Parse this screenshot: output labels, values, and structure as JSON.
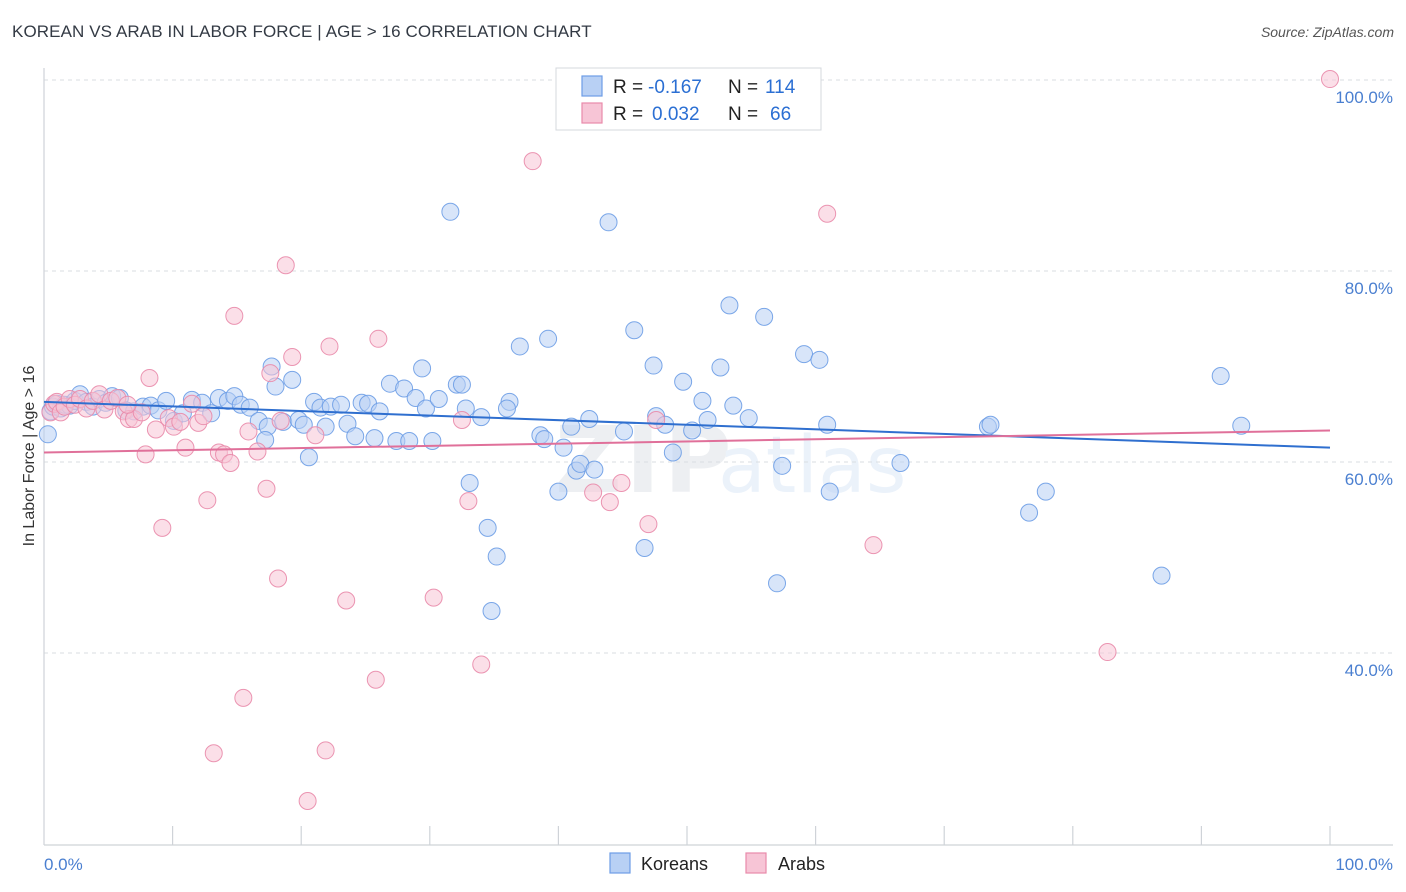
{
  "header": {
    "title": "KOREAN VS ARAB IN LABOR FORCE | AGE > 16 CORRELATION CHART",
    "source": "Source: ZipAtlas.com"
  },
  "chart_data": {
    "type": "scatter",
    "title": "KOREAN VS ARAB IN LABOR FORCE | AGE > 16 CORRELATION CHART",
    "ylabel": "In Labor Force | Age > 16",
    "xlabel": "",
    "xlim": [
      0,
      100
    ],
    "ylim": [
      20,
      104
    ],
    "x_tick_labels": {
      "left": "0.0%",
      "right": "100.0%"
    },
    "y_ticks": [
      {
        "value": 100,
        "label": "100.0%"
      },
      {
        "value": 80,
        "label": "80.0%"
      },
      {
        "value": 60,
        "label": "60.0%"
      },
      {
        "value": 40,
        "label": "40.0%"
      }
    ],
    "grid": "horizontal dashed",
    "legend": {
      "placement": "top-center",
      "r_label": "R =",
      "n_label": "N =",
      "entries": [
        {
          "name": "Koreans",
          "r": "-0.167",
          "n": "114",
          "color": "#6d9de6",
          "fill": "#b8d0f4"
        },
        {
          "name": "Arabs",
          "r": "0.032",
          "n": "66",
          "color": "#e98aaa",
          "fill": "#f7c5d6"
        }
      ]
    },
    "watermark": "ZIPatlas",
    "series": [
      {
        "name": "Koreans",
        "color": "#6d9de6",
        "trend": {
          "x": [
            0,
            100
          ],
          "y": [
            66.3,
            61.5
          ]
        },
        "points": [
          [
            0.3,
            62.9
          ],
          [
            0.5,
            65.3
          ],
          [
            0.7,
            65.8
          ],
          [
            1.0,
            66.1
          ],
          [
            1.3,
            65.6
          ],
          [
            1.6,
            66.0
          ],
          [
            2.0,
            65.9
          ],
          [
            2.4,
            66.4
          ],
          [
            2.8,
            67.1
          ],
          [
            3.3,
            66.3
          ],
          [
            3.8,
            65.8
          ],
          [
            4.3,
            66.6
          ],
          [
            4.8,
            66.2
          ],
          [
            5.3,
            66.9
          ],
          [
            5.9,
            66.7
          ],
          [
            6.4,
            65.4
          ],
          [
            7.0,
            65.3
          ],
          [
            7.7,
            65.8
          ],
          [
            8.3,
            65.9
          ],
          [
            8.9,
            65.4
          ],
          [
            9.5,
            66.4
          ],
          [
            10.1,
            64.3
          ],
          [
            10.8,
            65.1
          ],
          [
            11.5,
            66.5
          ],
          [
            12.3,
            66.2
          ],
          [
            13.0,
            65.1
          ],
          [
            13.6,
            66.7
          ],
          [
            14.3,
            66.4
          ],
          [
            14.8,
            66.9
          ],
          [
            15.3,
            66.0
          ],
          [
            16.0,
            65.7
          ],
          [
            16.7,
            64.3
          ],
          [
            17.4,
            63.7
          ],
          [
            17.2,
            62.3
          ],
          [
            17.7,
            70.0
          ],
          [
            18.0,
            67.9
          ],
          [
            18.6,
            64.2
          ],
          [
            19.3,
            68.6
          ],
          [
            19.8,
            64.4
          ],
          [
            20.2,
            63.9
          ],
          [
            20.6,
            60.5
          ],
          [
            21.0,
            66.3
          ],
          [
            21.5,
            65.7
          ],
          [
            21.9,
            63.7
          ],
          [
            22.3,
            65.8
          ],
          [
            23.1,
            66.0
          ],
          [
            23.6,
            64.0
          ],
          [
            24.2,
            62.7
          ],
          [
            24.7,
            66.2
          ],
          [
            25.2,
            66.1
          ],
          [
            25.7,
            62.5
          ],
          [
            26.1,
            65.3
          ],
          [
            26.9,
            68.2
          ],
          [
            27.4,
            62.2
          ],
          [
            28.0,
            67.7
          ],
          [
            28.4,
            62.2
          ],
          [
            28.9,
            66.7
          ],
          [
            29.4,
            69.8
          ],
          [
            29.7,
            65.6
          ],
          [
            30.2,
            62.2
          ],
          [
            30.7,
            66.6
          ],
          [
            31.6,
            86.2
          ],
          [
            32.1,
            68.1
          ],
          [
            32.5,
            68.1
          ],
          [
            32.8,
            65.6
          ],
          [
            33.1,
            57.8
          ],
          [
            34.0,
            64.7
          ],
          [
            34.5,
            53.1
          ],
          [
            34.8,
            44.4
          ],
          [
            35.2,
            50.1
          ],
          [
            36.2,
            66.3
          ],
          [
            36.0,
            65.6
          ],
          [
            37.0,
            72.1
          ],
          [
            38.6,
            62.8
          ],
          [
            39.2,
            72.9
          ],
          [
            38.9,
            62.4
          ],
          [
            40.0,
            56.9
          ],
          [
            40.4,
            61.5
          ],
          [
            41.0,
            63.7
          ],
          [
            41.4,
            59.1
          ],
          [
            41.7,
            59.8
          ],
          [
            42.4,
            64.5
          ],
          [
            42.8,
            59.2
          ],
          [
            43.9,
            85.1
          ],
          [
            45.1,
            63.2
          ],
          [
            45.9,
            73.8
          ],
          [
            46.7,
            51.0
          ],
          [
            47.4,
            70.1
          ],
          [
            47.6,
            64.8
          ],
          [
            48.3,
            63.9
          ],
          [
            48.9,
            61.0
          ],
          [
            49.7,
            68.4
          ],
          [
            50.4,
            63.3
          ],
          [
            51.2,
            66.4
          ],
          [
            51.6,
            64.4
          ],
          [
            52.6,
            69.9
          ],
          [
            53.3,
            76.4
          ],
          [
            53.6,
            65.9
          ],
          [
            54.8,
            64.6
          ],
          [
            56.0,
            75.2
          ],
          [
            57.0,
            47.3
          ],
          [
            57.4,
            59.6
          ],
          [
            59.1,
            71.3
          ],
          [
            60.3,
            70.7
          ],
          [
            60.9,
            63.9
          ],
          [
            61.1,
            56.9
          ],
          [
            66.6,
            59.9
          ],
          [
            73.4,
            63.7
          ],
          [
            73.6,
            63.9
          ],
          [
            76.6,
            54.7
          ],
          [
            77.9,
            56.9
          ],
          [
            86.9,
            48.1
          ],
          [
            91.5,
            69.0
          ],
          [
            93.1,
            63.8
          ]
        ]
      },
      {
        "name": "Arabs",
        "color": "#e98aaa",
        "trend": {
          "x": [
            0,
            100
          ],
          "y": [
            61.0,
            63.3
          ]
        },
        "points": [
          [
            0.5,
            65.2
          ],
          [
            0.8,
            66.1
          ],
          [
            1.0,
            66.3
          ],
          [
            1.3,
            65.2
          ],
          [
            1.6,
            65.8
          ],
          [
            2.0,
            66.6
          ],
          [
            2.4,
            66.0
          ],
          [
            2.8,
            66.6
          ],
          [
            3.3,
            65.6
          ],
          [
            3.8,
            66.4
          ],
          [
            4.3,
            67.1
          ],
          [
            4.7,
            65.5
          ],
          [
            5.2,
            66.4
          ],
          [
            5.7,
            66.7
          ],
          [
            6.2,
            65.3
          ],
          [
            6.6,
            64.5
          ],
          [
            7.0,
            64.5
          ],
          [
            7.6,
            65.2
          ],
          [
            7.9,
            60.8
          ],
          [
            8.2,
            68.8
          ],
          [
            8.7,
            63.4
          ],
          [
            9.2,
            53.1
          ],
          [
            9.7,
            64.6
          ],
          [
            10.1,
            63.7
          ],
          [
            10.6,
            64.2
          ],
          [
            11.0,
            61.5
          ],
          [
            11.5,
            66.1
          ],
          [
            12.0,
            64.1
          ],
          [
            12.7,
            56.0
          ],
          [
            13.2,
            29.5
          ],
          [
            13.6,
            61.0
          ],
          [
            14.0,
            60.8
          ],
          [
            14.5,
            59.9
          ],
          [
            14.8,
            75.3
          ],
          [
            15.5,
            35.3
          ],
          [
            15.9,
            63.2
          ],
          [
            16.6,
            61.1
          ],
          [
            17.3,
            57.2
          ],
          [
            17.6,
            69.3
          ],
          [
            18.2,
            47.8
          ],
          [
            18.4,
            64.3
          ],
          [
            18.8,
            80.6
          ],
          [
            19.3,
            71.0
          ],
          [
            20.5,
            24.5
          ],
          [
            21.1,
            62.8
          ],
          [
            21.9,
            29.8
          ],
          [
            22.2,
            72.1
          ],
          [
            23.5,
            45.5
          ],
          [
            25.8,
            37.2
          ],
          [
            26.0,
            72.9
          ],
          [
            30.3,
            45.8
          ],
          [
            32.5,
            64.4
          ],
          [
            33.0,
            55.9
          ],
          [
            34.0,
            38.8
          ],
          [
            38.0,
            91.5
          ],
          [
            42.7,
            56.8
          ],
          [
            44.0,
            55.8
          ],
          [
            44.9,
            57.8
          ],
          [
            47.0,
            53.5
          ],
          [
            47.6,
            64.4
          ],
          [
            60.9,
            86.0
          ],
          [
            64.5,
            51.3
          ],
          [
            82.7,
            40.1
          ],
          [
            100.0,
            100.1
          ],
          [
            6.5,
            66.0
          ],
          [
            12.4,
            64.8
          ]
        ]
      }
    ]
  }
}
